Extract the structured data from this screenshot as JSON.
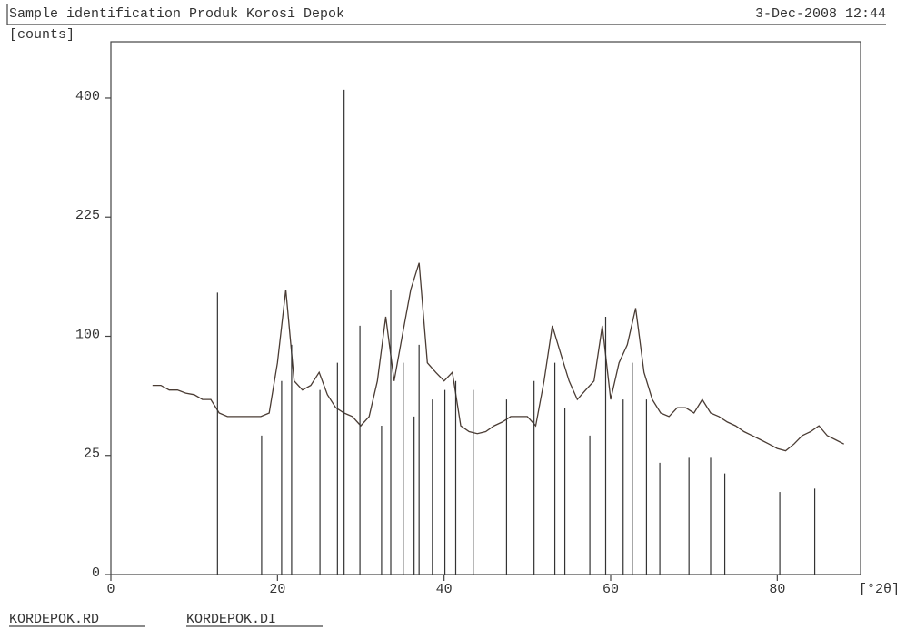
{
  "chart_data": {
    "type": "line",
    "title": "Sample identification Produk Korosi Depok",
    "date": "3-Dec-2008 12:44",
    "y_label": "[counts]",
    "x_label": "[°2θ]",
    "y_scale": "sqrt",
    "xlim": [
      0,
      90
    ],
    "ylim": [
      0,
      500
    ],
    "xticks": [
      0,
      20,
      40,
      60,
      80
    ],
    "yticks": [
      0,
      25,
      100,
      225,
      400
    ],
    "series": [
      {
        "name": "KORDEPOK.RD",
        "style": "line",
        "color": "#4a3c34",
        "x": [
          5,
          6,
          7,
          8,
          9,
          10,
          11,
          12,
          13,
          14,
          15,
          16,
          17,
          18,
          19,
          20,
          21,
          22,
          23,
          24,
          25,
          26,
          27,
          28,
          29,
          30,
          31,
          32,
          33,
          34,
          35,
          36,
          37,
          38,
          39,
          40,
          41,
          42,
          43,
          44,
          45,
          46,
          47,
          48,
          49,
          50,
          51,
          52,
          53,
          54,
          55,
          56,
          57,
          58,
          59,
          60,
          61,
          62,
          63,
          64,
          65,
          66,
          67,
          68,
          69,
          70,
          71,
          72,
          73,
          74,
          75,
          76,
          77,
          78,
          79,
          80,
          81,
          82,
          83,
          84,
          85,
          86,
          87,
          88
        ],
        "values": [
          63,
          63,
          60,
          60,
          58,
          57,
          54,
          54,
          46,
          44,
          44,
          44,
          44,
          44,
          46,
          79,
          143,
          66,
          60,
          63,
          72,
          57,
          49,
          46,
          44,
          39,
          44,
          66,
          117,
          66,
          101,
          143,
          171,
          79,
          72,
          66,
          72,
          39,
          36,
          35,
          36,
          39,
          41,
          44,
          44,
          44,
          39,
          66,
          109,
          86,
          66,
          54,
          60,
          66,
          109,
          54,
          79,
          93,
          125,
          72,
          54,
          46,
          44,
          49,
          49,
          46,
          54,
          46,
          44,
          41,
          39,
          36,
          34,
          32,
          30,
          28,
          27,
          30,
          34,
          36,
          39,
          34,
          32,
          30
        ]
      },
      {
        "name": "KORDEPOK.DI",
        "style": "stick",
        "color": "#333333",
        "x": [
          12.8,
          18.1,
          20.5,
          21.7,
          25.1,
          27.2,
          28.0,
          29.9,
          32.5,
          33.6,
          35.1,
          36.4,
          37.0,
          38.6,
          40.1,
          41.4,
          43.5,
          47.5,
          50.8,
          53.3,
          54.5,
          57.5,
          59.4,
          61.5,
          62.6,
          64.3,
          65.9,
          69.4,
          72.0,
          73.7,
          80.3,
          84.5
        ],
        "values": [
          140,
          34,
          66,
          93,
          60,
          79,
          414,
          109,
          39,
          143,
          79,
          44,
          93,
          54,
          60,
          66,
          60,
          54,
          66,
          79,
          49,
          34,
          117,
          54,
          79,
          54,
          22,
          24,
          24,
          18,
          12,
          13
        ]
      }
    ]
  }
}
